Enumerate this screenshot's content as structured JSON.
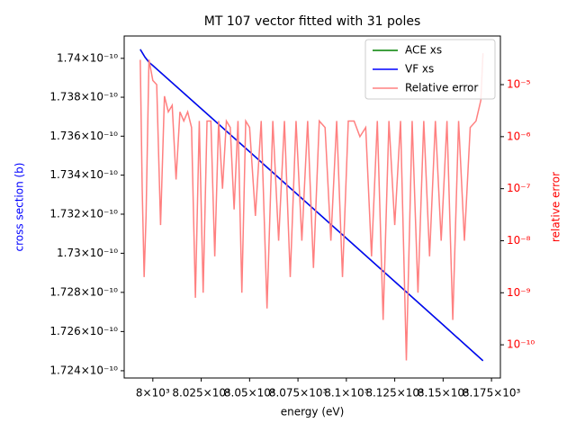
{
  "chart_data": {
    "type": "line",
    "title": "MT 107 vector fitted with 31 poles",
    "x_label": "energy (eV)",
    "y_label": "cross section (b)",
    "y2_label": "relative error",
    "y_label_color": "#0000ff",
    "y2_label_color": "#ff0000",
    "xlim": [
      7985.2,
      8179.6
    ],
    "xticks": [
      {
        "value": 8000,
        "label": "8×10³"
      },
      {
        "value": 8025,
        "label": "8.025×10³"
      },
      {
        "value": 8050,
        "label": "8.05×10³"
      },
      {
        "value": 8075,
        "label": "8.075×10³"
      },
      {
        "value": 8100,
        "label": "8.1×10³"
      },
      {
        "value": 8125,
        "label": "8.125×10³"
      },
      {
        "value": 8150,
        "label": "8.15×10³"
      },
      {
        "value": 8175,
        "label": "8.175×10³"
      }
    ],
    "ylog": true,
    "ylim": [
      1.72363e-10,
      1.74115e-10
    ],
    "yticks": [
      {
        "value": 1.724e-10,
        "label": "1.724×10⁻¹⁰"
      },
      {
        "value": 1.726e-10,
        "label": "1.726×10⁻¹⁰"
      },
      {
        "value": 1.728e-10,
        "label": "1.728×10⁻¹⁰"
      },
      {
        "value": 1.73e-10,
        "label": "1.73×10⁻¹⁰"
      },
      {
        "value": 1.732e-10,
        "label": "1.732×10⁻¹⁰"
      },
      {
        "value": 1.734e-10,
        "label": "1.734×10⁻¹⁰"
      },
      {
        "value": 1.736e-10,
        "label": "1.736×10⁻¹⁰"
      },
      {
        "value": 1.738e-10,
        "label": "1.738×10⁻¹⁰"
      },
      {
        "value": 1.74e-10,
        "label": "1.74×10⁻¹⁰"
      }
    ],
    "y2log": true,
    "y2lim": [
      2.3e-11,
      8.6e-05
    ],
    "y2ticks": [
      {
        "value": 1e-10,
        "label": "10⁻¹⁰"
      },
      {
        "value": 1e-09,
        "label": "10⁻⁹"
      },
      {
        "value": 1e-08,
        "label": "10⁻⁸"
      },
      {
        "value": 1e-07,
        "label": "10⁻⁷"
      },
      {
        "value": 1e-06,
        "label": "10⁻⁶"
      },
      {
        "value": 1e-05,
        "label": "10⁻⁵"
      }
    ],
    "legend": "upper right",
    "series": [
      {
        "name": "ACE xs",
        "color": "#008000",
        "x": [
          7993.5,
          7996,
          7998,
          8000,
          8050,
          8100,
          8150,
          8170.6
        ],
        "values": [
          1.74046e-10,
          1.74005e-10,
          1.7398e-10,
          1.73963e-10,
          1.7352e-10,
          1.73077e-10,
          1.72634e-10,
          1.72451e-10
        ]
      },
      {
        "name": "VF xs",
        "color": "#0000ff",
        "x": [
          7993.5,
          7996,
          7998,
          8000,
          8050,
          8100,
          8150,
          8170.6
        ],
        "values": [
          1.74046e-10,
          1.74005e-10,
          1.7398e-10,
          1.73963e-10,
          1.7352e-10,
          1.73077e-10,
          1.72634e-10,
          1.72451e-10
        ]
      },
      {
        "name": "Relative error",
        "color": "#ff8080",
        "axis": "y2",
        "x": [
          7993.5,
          7994.5,
          7995.5,
          7996.5,
          7998,
          8000,
          8002,
          8004,
          8006,
          8008,
          8010,
          8012,
          8014,
          8016,
          8018,
          8020,
          8022,
          8024,
          8026,
          8028,
          8030,
          8032,
          8034,
          8036,
          8038,
          8040,
          8042,
          8044,
          8046,
          8048,
          8050,
          8053,
          8056,
          8059,
          8062,
          8065,
          8068,
          8071,
          8074,
          8077,
          8080,
          8083,
          8086,
          8089,
          8092,
          8095,
          8098,
          8101,
          8104,
          8107,
          8110,
          8113,
          8116,
          8119,
          8122,
          8125,
          8128,
          8131,
          8134,
          8137,
          8140,
          8143,
          8146,
          8149,
          8152,
          8155,
          8158,
          8161,
          8164,
          8167,
          8169.5,
          8170.6
        ],
        "values": [
          3e-05,
          1e-07,
          2e-09,
          3e-08,
          3e-05,
          1.2e-05,
          1e-05,
          2e-08,
          6e-06,
          3e-06,
          4e-06,
          1.5e-07,
          3e-06,
          2e-06,
          3e-06,
          1.5e-06,
          8e-10,
          2e-06,
          1e-09,
          2e-06,
          2e-06,
          5e-09,
          2e-06,
          1e-07,
          2e-06,
          1.5e-06,
          4e-08,
          2e-06,
          1e-09,
          2e-06,
          1.5e-06,
          3e-08,
          2e-06,
          5e-10,
          2e-06,
          1e-08,
          2e-06,
          2e-09,
          2e-06,
          1e-08,
          2e-06,
          3e-09,
          2e-06,
          1.5e-06,
          1e-08,
          2e-06,
          2e-09,
          2e-06,
          2e-06,
          1e-06,
          1.5e-06,
          5e-09,
          2e-06,
          3e-10,
          2e-06,
          2e-08,
          2e-06,
          5e-11,
          2e-06,
          1e-09,
          2e-06,
          5e-09,
          2e-06,
          1e-08,
          2e-06,
          3e-10,
          2e-06,
          1e-08,
          1.5e-06,
          2e-06,
          5e-06,
          4e-05
        ]
      }
    ]
  }
}
